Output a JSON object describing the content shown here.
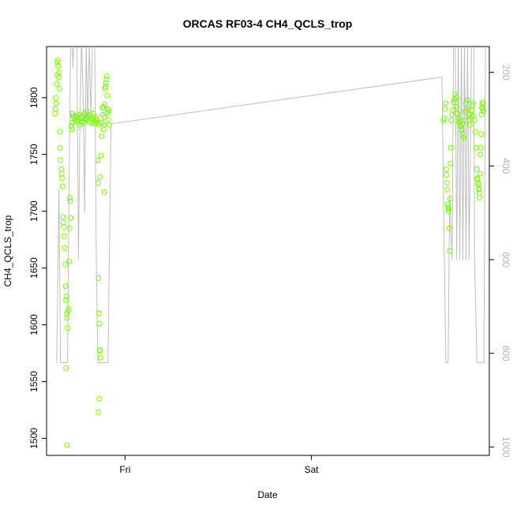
{
  "chart_data": {
    "type": "scatter",
    "title": "ORCAS RF03-4 CH4_QCLS_trop",
    "xlabel": "Date",
    "ylabel": "CH4_QCLS_trop",
    "x_ticks": [
      "Fri",
      "Sat"
    ],
    "x_tick_hours": [
      24,
      48
    ],
    "x_range_hours": [
      13.9,
      70.9
    ],
    "y_ticks": [
      1500,
      1550,
      1600,
      1650,
      1700,
      1750,
      1800
    ],
    "ylim": [
      1485,
      1845
    ],
    "y2_ticks": [
      200,
      400,
      600,
      800,
      1000
    ],
    "y2lim": [
      1018,
      145
    ],
    "y2_reversed": true,
    "point_color": "#7cfc00",
    "line_color": "#bebebe",
    "series": [
      {
        "name": "",
        "kind": "points",
        "points": [
          [
            15.0,
            1786
          ],
          [
            15.05,
            1790
          ],
          [
            15.1,
            1800
          ],
          [
            15.15,
            1795
          ],
          [
            15.2,
            1812
          ],
          [
            15.25,
            1820
          ],
          [
            15.3,
            1831
          ],
          [
            15.35,
            1833
          ],
          [
            15.4,
            1828
          ],
          [
            15.45,
            1818
          ],
          [
            15.5,
            1822
          ],
          [
            15.55,
            1808
          ],
          [
            15.6,
            1770
          ],
          [
            15.65,
            1756
          ],
          [
            15.7,
            1745
          ],
          [
            15.8,
            1737
          ],
          [
            15.85,
            1733
          ],
          [
            15.9,
            1729
          ],
          [
            15.95,
            1722
          ],
          [
            16.0,
            1695
          ],
          [
            16.05,
            1690
          ],
          [
            16.1,
            1686
          ],
          [
            16.15,
            1678
          ],
          [
            16.2,
            1668
          ],
          [
            16.3,
            1653
          ],
          [
            16.35,
            1634
          ],
          [
            16.4,
            1622
          ],
          [
            16.45,
            1625
          ],
          [
            16.5,
            1610
          ],
          [
            16.55,
            1606
          ],
          [
            16.6,
            1597
          ],
          [
            16.4,
            1562
          ],
          [
            16.7,
            1612
          ],
          [
            16.75,
            1614
          ],
          [
            16.8,
            1656
          ],
          [
            16.85,
            1685
          ],
          [
            16.9,
            1712
          ],
          [
            16.95,
            1709
          ],
          [
            17.0,
            1694
          ],
          [
            16.55,
            1494
          ],
          [
            17.1,
            1775
          ],
          [
            17.15,
            1772
          ],
          [
            17.2,
            1778
          ],
          [
            17.25,
            1786
          ],
          [
            17.3,
            1784
          ],
          [
            17.4,
            1783
          ],
          [
            17.5,
            1782
          ],
          [
            17.6,
            1780
          ],
          [
            17.7,
            1784
          ],
          [
            17.8,
            1779
          ],
          [
            17.9,
            1783
          ],
          [
            18.0,
            1781
          ],
          [
            18.1,
            1785
          ],
          [
            18.2,
            1776
          ],
          [
            18.3,
            1782
          ],
          [
            18.4,
            1779
          ],
          [
            18.5,
            1783
          ],
          [
            18.6,
            1784
          ],
          [
            18.7,
            1778
          ],
          [
            18.8,
            1786
          ],
          [
            18.9,
            1782
          ],
          [
            19.0,
            1780
          ],
          [
            19.1,
            1788
          ],
          [
            19.2,
            1784
          ],
          [
            19.3,
            1783
          ],
          [
            19.4,
            1779
          ],
          [
            19.5,
            1785
          ],
          [
            19.6,
            1781
          ],
          [
            19.7,
            1778
          ],
          [
            19.8,
            1782
          ],
          [
            19.9,
            1786
          ],
          [
            20.0,
            1780
          ],
          [
            20.1,
            1777
          ],
          [
            20.2,
            1783
          ],
          [
            20.3,
            1779
          ],
          [
            20.4,
            1781
          ],
          [
            20.5,
            1778
          ],
          [
            20.6,
            1776
          ],
          [
            20.5,
            1745
          ],
          [
            20.55,
            1725
          ],
          [
            20.6,
            1641
          ],
          [
            20.65,
            1610
          ],
          [
            20.7,
            1601
          ],
          [
            20.75,
            1578
          ],
          [
            20.8,
            1577
          ],
          [
            20.85,
            1571
          ],
          [
            20.7,
            1535
          ],
          [
            20.6,
            1523
          ],
          [
            20.8,
            1730
          ],
          [
            20.9,
            1749
          ],
          [
            21.0,
            1766
          ],
          [
            21.05,
            1778
          ],
          [
            21.1,
            1791
          ],
          [
            21.15,
            1785
          ],
          [
            21.2,
            1792
          ],
          [
            21.25,
            1772
          ],
          [
            21.3,
            1776
          ],
          [
            21.35,
            1783
          ],
          [
            21.4,
            1794
          ],
          [
            21.45,
            1808
          ],
          [
            21.5,
            1810
          ],
          [
            21.55,
            1813
          ],
          [
            21.6,
            1816
          ],
          [
            21.65,
            1819
          ],
          [
            21.7,
            1802
          ],
          [
            21.75,
            1790
          ],
          [
            21.8,
            1787
          ],
          [
            21.85,
            1781
          ],
          [
            21.9,
            1789
          ],
          [
            21.95,
            1776
          ],
          [
            21.3,
            1717
          ],
          [
            65.0,
            1780
          ],
          [
            65.1,
            1782
          ],
          [
            65.2,
            1790
          ],
          [
            65.3,
            1795
          ],
          [
            65.35,
            1737
          ],
          [
            65.4,
            1732
          ],
          [
            65.45,
            1725
          ],
          [
            65.5,
            1719
          ],
          [
            65.55,
            1706
          ],
          [
            65.6,
            1703
          ],
          [
            65.65,
            1700
          ],
          [
            65.7,
            1702
          ],
          [
            65.75,
            1685
          ],
          [
            65.8,
            1665
          ],
          [
            65.85,
            1711
          ],
          [
            65.9,
            1742
          ],
          [
            65.95,
            1756
          ],
          [
            66.0,
            1780
          ],
          [
            66.1,
            1785
          ],
          [
            66.2,
            1789
          ],
          [
            66.3,
            1796
          ],
          [
            66.4,
            1798
          ],
          [
            66.5,
            1803
          ],
          [
            66.6,
            1800
          ],
          [
            66.7,
            1792
          ],
          [
            66.8,
            1786
          ],
          [
            66.9,
            1782
          ],
          [
            67.0,
            1778
          ],
          [
            67.1,
            1780
          ],
          [
            67.2,
            1775
          ],
          [
            67.3,
            1772
          ],
          [
            67.4,
            1777
          ],
          [
            67.5,
            1768
          ],
          [
            67.6,
            1765
          ],
          [
            67.7,
            1780
          ],
          [
            67.8,
            1788
          ],
          [
            67.9,
            1795
          ],
          [
            68.0,
            1790
          ],
          [
            68.1,
            1798
          ],
          [
            68.2,
            1785
          ],
          [
            68.3,
            1780
          ],
          [
            68.4,
            1776
          ],
          [
            68.5,
            1783
          ],
          [
            68.6,
            1789
          ],
          [
            68.7,
            1793
          ],
          [
            68.8,
            1795
          ],
          [
            68.9,
            1784
          ],
          [
            69.0,
            1780
          ],
          [
            69.1,
            1770
          ],
          [
            69.2,
            1756
          ],
          [
            69.3,
            1737
          ],
          [
            69.35,
            1729
          ],
          [
            69.4,
            1728
          ],
          [
            69.45,
            1725
          ],
          [
            69.5,
            1723
          ],
          [
            69.55,
            1719
          ],
          [
            69.6,
            1716
          ],
          [
            69.65,
            1712
          ],
          [
            69.7,
            1733
          ],
          [
            69.75,
            1750
          ],
          [
            69.8,
            1756
          ],
          [
            69.85,
            1768
          ],
          [
            69.9,
            1785
          ],
          [
            69.95,
            1791
          ],
          [
            70.0,
            1794
          ],
          [
            70.05,
            1796
          ],
          [
            70.1,
            1790
          ],
          [
            70.15,
            1788
          ],
          [
            69.6,
            1720
          ]
        ]
      },
      {
        "name": "",
        "kind": "line",
        "axis": "right",
        "points": [
          [
            15.2,
            820
          ],
          [
            15.5,
            450
          ],
          [
            15.7,
            820
          ],
          [
            16.6,
            820
          ],
          [
            16.8,
            430
          ],
          [
            17.0,
            140
          ],
          [
            17.2,
            140
          ],
          [
            17.3,
            190
          ],
          [
            17.4,
            140
          ],
          [
            17.6,
            140
          ],
          [
            17.8,
            140
          ],
          [
            18.0,
            600
          ],
          [
            18.2,
            300
          ],
          [
            18.4,
            130
          ],
          [
            18.6,
            250
          ],
          [
            18.8,
            500
          ],
          [
            19.0,
            140
          ],
          [
            19.2,
            300
          ],
          [
            19.4,
            140
          ],
          [
            19.6,
            290
          ],
          [
            19.8,
            140
          ],
          [
            20.1,
            140
          ],
          [
            20.3,
            600
          ],
          [
            20.5,
            820
          ],
          [
            21.8,
            820
          ],
          [
            22.2,
            310
          ],
          [
            64.8,
            210
          ],
          [
            65.0,
            470
          ],
          [
            65.3,
            820
          ],
          [
            65.6,
            820
          ],
          [
            65.8,
            460
          ],
          [
            66.1,
            600
          ],
          [
            66.3,
            140
          ],
          [
            66.5,
            140
          ],
          [
            66.7,
            600
          ],
          [
            66.9,
            140
          ],
          [
            67.1,
            600
          ],
          [
            67.3,
            140
          ],
          [
            67.5,
            600
          ],
          [
            67.7,
            140
          ],
          [
            67.9,
            600
          ],
          [
            68.1,
            140
          ],
          [
            68.3,
            600
          ],
          [
            68.6,
            140
          ],
          [
            68.9,
            140
          ],
          [
            69.0,
            600
          ],
          [
            69.3,
            820
          ],
          [
            70.2,
            820
          ],
          [
            70.4,
            140
          ]
        ]
      }
    ]
  }
}
